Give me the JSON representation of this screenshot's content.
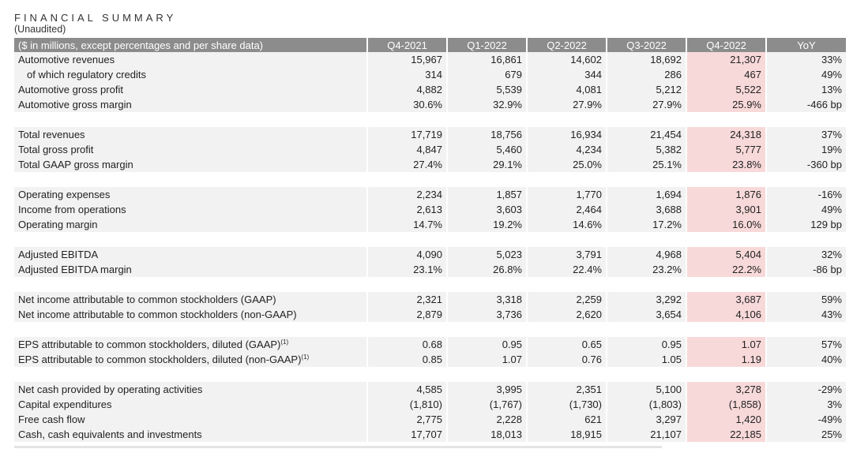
{
  "title": "FINANCIAL SUMMARY",
  "subtitle": "(Unaudited)",
  "header": {
    "label": "($ in millions, except percentages and per share data)",
    "columns": [
      "Q4-2021",
      "Q1-2022",
      "Q2-2022",
      "Q3-2022",
      "Q4-2022",
      "YoY"
    ]
  },
  "highlight_color": "#f8d9d9",
  "header_color": "#8c8c8c",
  "groups": [
    {
      "rows": [
        {
          "label": "Automotive revenues",
          "values": [
            "15,967",
            "16,861",
            "14,602",
            "18,692",
            "21,307",
            "33%"
          ]
        },
        {
          "label": "of which regulatory credits",
          "indent": true,
          "values": [
            "314",
            "679",
            "344",
            "286",
            "467",
            "49%"
          ]
        },
        {
          "label": "Automotive gross profit",
          "values": [
            "4,882",
            "5,539",
            "4,081",
            "5,212",
            "5,522",
            "13%"
          ]
        },
        {
          "label": "Automotive gross margin",
          "values": [
            "30.6%",
            "32.9%",
            "27.9%",
            "27.9%",
            "25.9%",
            "-466 bp"
          ]
        }
      ]
    },
    {
      "rows": [
        {
          "label": "Total revenues",
          "values": [
            "17,719",
            "18,756",
            "16,934",
            "21,454",
            "24,318",
            "37%"
          ]
        },
        {
          "label": "Total gross profit",
          "values": [
            "4,847",
            "5,460",
            "4,234",
            "5,382",
            "5,777",
            "19%"
          ]
        },
        {
          "label": "Total GAAP gross margin",
          "values": [
            "27.4%",
            "29.1%",
            "25.0%",
            "25.1%",
            "23.8%",
            "-360 bp"
          ]
        }
      ]
    },
    {
      "rows": [
        {
          "label": "Operating expenses",
          "values": [
            "2,234",
            "1,857",
            "1,770",
            "1,694",
            "1,876",
            "-16%"
          ]
        },
        {
          "label": "Income from operations",
          "values": [
            "2,613",
            "3,603",
            "2,464",
            "3,688",
            "3,901",
            "49%"
          ]
        },
        {
          "label": "Operating margin",
          "values": [
            "14.7%",
            "19.2%",
            "14.6%",
            "17.2%",
            "16.0%",
            "129 bp"
          ]
        }
      ]
    },
    {
      "rows": [
        {
          "label": "Adjusted EBITDA",
          "values": [
            "4,090",
            "5,023",
            "3,791",
            "4,968",
            "5,404",
            "32%"
          ]
        },
        {
          "label": "Adjusted EBITDA margin",
          "values": [
            "23.1%",
            "26.8%",
            "22.4%",
            "23.2%",
            "22.2%",
            "-86 bp"
          ]
        }
      ]
    },
    {
      "rows": [
        {
          "label": "Net income attributable to common stockholders (GAAP)",
          "values": [
            "2,321",
            "3,318",
            "2,259",
            "3,292",
            "3,687",
            "59%"
          ]
        },
        {
          "label": "Net income attributable to common stockholders (non-GAAP)",
          "values": [
            "2,879",
            "3,736",
            "2,620",
            "3,654",
            "4,106",
            "43%"
          ]
        }
      ]
    },
    {
      "rows": [
        {
          "label": "EPS attributable to common stockholders, diluted (GAAP)",
          "sup": "(1)",
          "values": [
            "0.68",
            "0.95",
            "0.65",
            "0.95",
            "1.07",
            "57%"
          ]
        },
        {
          "label": "EPS attributable to common stockholders, diluted (non-GAAP)",
          "sup": "(1)",
          "values": [
            "0.85",
            "1.07",
            "0.76",
            "1.05",
            "1.19",
            "40%"
          ]
        }
      ]
    },
    {
      "rows": [
        {
          "label": "Net cash provided by operating activities",
          "values": [
            "4,585",
            "3,995",
            "2,351",
            "5,100",
            "3,278",
            "-29%"
          ]
        },
        {
          "label": "Capital expenditures",
          "values": [
            "(1,810)",
            "(1,767)",
            "(1,730)",
            "(1,803)",
            "(1,858)",
            "3%"
          ]
        },
        {
          "label": "Free cash flow",
          "values": [
            "2,775",
            "2,228",
            "621",
            "3,297",
            "1,420",
            "-49%"
          ]
        },
        {
          "label": "Cash, cash equivalents and investments",
          "values": [
            "17,707",
            "18,013",
            "18,915",
            "21,107",
            "22,185",
            "25%"
          ]
        }
      ]
    }
  ]
}
